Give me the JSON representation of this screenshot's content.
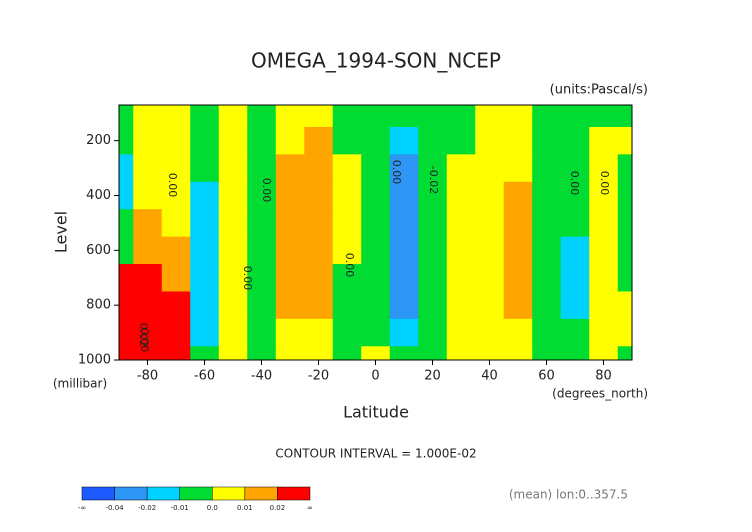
{
  "chart_data": {
    "type": "contour",
    "title": "OMEGA_1994-SON_NCEP",
    "subtitle": "(units:Pascal/s)",
    "ylabel": "Level",
    "yunit": "(millibar)",
    "xlabel": "Latitude",
    "xunit": "(degrees_north)",
    "interval_note": "CONTOUR INTERVAL = 1.000E-02",
    "footnote": "(mean) lon:0..357.5",
    "x": [
      -90,
      -80,
      -70,
      -60,
      -50,
      -40,
      -30,
      -20,
      -10,
      0,
      10,
      20,
      30,
      40,
      50,
      60,
      70,
      80,
      90
    ],
    "y": [
      100,
      200,
      300,
      400,
      500,
      600,
      700,
      800,
      900,
      1000
    ],
    "z": [
      [
        -0.005,
        0.005,
        0.003,
        -0.003,
        0.003,
        -0.003,
        0.005,
        0.004,
        -0.003,
        -0.004,
        -0.008,
        -0.003,
        -0.003,
        0.004,
        0.003,
        -0.003,
        -0.003,
        -0.003,
        -0.004
      ],
      [
        -0.005,
        0.005,
        0.005,
        -0.005,
        0.004,
        -0.004,
        0.008,
        0.012,
        -0.003,
        -0.005,
        -0.015,
        -0.005,
        -0.003,
        0.006,
        0.004,
        -0.003,
        -0.003,
        0.003,
        0.003
      ],
      [
        -0.012,
        0.006,
        0.005,
        -0.008,
        0.004,
        -0.004,
        0.012,
        0.015,
        0.004,
        -0.005,
        -0.022,
        -0.008,
        0.004,
        0.008,
        0.008,
        -0.004,
        -0.003,
        0.004,
        -0.004
      ],
      [
        -0.012,
        0.008,
        0.006,
        -0.012,
        0.005,
        -0.005,
        0.013,
        0.016,
        0.004,
        -0.005,
        -0.025,
        -0.008,
        0.005,
        0.008,
        0.012,
        -0.004,
        -0.004,
        0.005,
        -0.004
      ],
      [
        -0.005,
        0.012,
        0.008,
        -0.013,
        0.006,
        -0.005,
        0.014,
        0.016,
        0.004,
        -0.005,
        -0.025,
        -0.008,
        0.005,
        0.006,
        0.014,
        -0.004,
        -0.008,
        0.005,
        -0.004
      ],
      [
        -0.005,
        0.015,
        0.012,
        -0.014,
        0.006,
        -0.005,
        0.014,
        0.016,
        0.003,
        -0.005,
        -0.028,
        -0.008,
        0.004,
        0.006,
        0.014,
        -0.004,
        -0.012,
        0.005,
        -0.004
      ],
      [
        0.025,
        0.025,
        0.018,
        -0.014,
        0.006,
        -0.005,
        0.014,
        0.016,
        -0.003,
        -0.005,
        -0.028,
        -0.008,
        0.004,
        0.006,
        0.014,
        -0.004,
        -0.012,
        0.005,
        -0.004
      ],
      [
        0.03,
        0.035,
        0.025,
        -0.015,
        0.006,
        -0.005,
        0.013,
        0.015,
        -0.003,
        -0.005,
        -0.025,
        -0.008,
        0.004,
        0.005,
        0.012,
        -0.004,
        -0.012,
        0.005,
        0.005
      ],
      [
        0.03,
        0.04,
        0.025,
        -0.012,
        0.005,
        -0.004,
        0.006,
        0.006,
        -0.003,
        -0.004,
        -0.018,
        -0.005,
        0.003,
        0.005,
        0.005,
        -0.004,
        -0.005,
        0.005,
        0.003
      ],
      [
        0.03,
        0.03,
        0.02,
        -0.005,
        0.005,
        -0.003,
        0.004,
        0.004,
        -0.003,
        0.005,
        -0.008,
        -0.004,
        0.003,
        0.004,
        0.004,
        -0.003,
        -0.003,
        0.004,
        -0.003
      ]
    ],
    "xlim": [
      -90,
      90
    ],
    "ylim": [
      1000,
      70
    ],
    "xticks": [
      -80,
      -60,
      -40,
      -20,
      0,
      20,
      40,
      60,
      80
    ],
    "yticks": [
      200,
      400,
      600,
      800,
      1000
    ],
    "colorbar": {
      "labels": [
        "-∞",
        -0.04,
        -0.02,
        -0.01,
        {
          "value": 0,
          "label": "0.0"
        },
        0.01,
        0.02,
        "∞"
      ],
      "colors": [
        "#1e5aff",
        "#2d96f5",
        "#00d2ff",
        "#00dc32",
        "#ffff00",
        "#ffa500",
        "#ff0000"
      ]
    },
    "contour_labels": [
      "0.00",
      "0.00",
      "0.00",
      "0.00",
      "0.00",
      "-0.02",
      "0.00",
      "0.00",
      "0.00",
      "0.02"
    ]
  }
}
